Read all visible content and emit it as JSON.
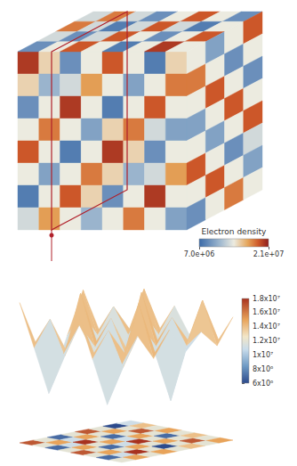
{
  "chart_data": [
    {
      "type": "volume",
      "colorbar": {
        "title": "Electron density",
        "range": [
          7000000.0,
          21000000.0
        ],
        "ticks": [
          {
            "value": 7000000,
            "label": "7.0e+06"
          },
          {
            "value": 21000000,
            "label": "2.1e+07"
          }
        ]
      },
      "cells": {
        "front": [
          [
            20000000.0,
            15000000.0,
            9000000.0,
            14000000.0,
            19000000.0,
            14000000.0,
            8000000.0,
            15000000.0
          ],
          [
            15000000.0,
            11000000.0,
            13000000.0,
            17000000.0,
            14000000.0,
            10000000.0,
            14000000.0,
            18000000.0
          ],
          [
            9000000.0,
            14000000.0,
            20000000.0,
            14000000.0,
            8000000.0,
            14000000.0,
            19000000.0,
            14000000.0
          ],
          [
            14000000.0,
            18000000.0,
            14000000.0,
            10000000.0,
            15000000.0,
            18000000.0,
            13000000.0,
            10000000.0
          ],
          [
            19000000.0,
            14000000.0,
            8000000.0,
            14000000.0,
            20000000.0,
            15000000.0,
            9000000.0,
            14000000.0
          ],
          [
            14000000.0,
            10000000.0,
            14000000.0,
            18000000.0,
            15000000.0,
            11000000.0,
            13000000.0,
            17000000.0
          ],
          [
            8000000.0,
            14000000.0,
            19000000.0,
            15000000.0,
            9000000.0,
            14000000.0,
            20000000.0,
            14000000.0
          ],
          [
            13000000.0,
            17000000.0,
            14000000.0,
            11000000.0,
            14000000.0,
            18000000.0,
            14000000.0,
            10000000.0
          ]
        ],
        "top": [
          [
            13000000.0,
            18000000.0,
            13000000.0,
            9000000.0,
            14000000.0,
            19000000.0,
            14000000.0,
            9000000.0
          ],
          [
            18000000.0,
            13000000.0,
            8000000.0,
            13000000.0,
            19000000.0,
            13000000.0,
            8000000.0,
            14000000.0
          ],
          [
            13000000.0,
            9000000.0,
            13000000.0,
            19000000.0,
            14000000.0,
            9000000.0,
            14000000.0,
            19000000.0
          ],
          [
            9000000.0,
            14000000.0,
            19000000.0,
            14000000.0,
            8000000.0,
            14000000.0,
            20000000.0,
            14000000.0
          ]
        ],
        "right": [
          [
            14000000.0,
            10000000.0,
            14000000.0,
            19000000.0
          ],
          [
            18000000.0,
            14000000.0,
            9000000.0,
            14000000.0
          ],
          [
            14000000.0,
            19000000.0,
            14000000.0,
            9000000.0
          ],
          [
            10000000.0,
            14000000.0,
            19000000.0,
            14000000.0
          ],
          [
            14000000.0,
            10000000.0,
            14000000.0,
            19000000.0
          ],
          [
            19000000.0,
            14000000.0,
            9000000.0,
            13000000.0
          ],
          [
            14000000.0,
            19000000.0,
            14000000.0,
            10000000.0
          ],
          [
            9000000.0,
            14000000.0,
            18000000.0,
            14000000.0
          ]
        ]
      }
    },
    {
      "type": "surface",
      "colorbar": {
        "range": [
          6000000.0,
          18000000.0
        ],
        "ticks": [
          {
            "value": 6000000,
            "label": "6x10⁶"
          },
          {
            "value": 8000000,
            "label": "8x10⁶"
          },
          {
            "value": 10000000,
            "label": "1x10⁷"
          },
          {
            "value": 12000000,
            "label": "1.2x10⁷"
          },
          {
            "value": 14000000,
            "label": "1.4x10⁷"
          },
          {
            "value": 16000000,
            "label": "1.6x10⁷"
          },
          {
            "value": 18000000,
            "label": "1.8x10⁷"
          }
        ]
      },
      "cells": [
        [
          17000000.0,
          12000000.0,
          7000000.0,
          12000000.0,
          17000000.0,
          12000000.0,
          7000000.0,
          12000000.0
        ],
        [
          12000000.0,
          15000000.0,
          11000000.0,
          15000000.0,
          12000000.0,
          15000000.0,
          11000000.0,
          15000000.0
        ],
        [
          7000000.0,
          11000000.0,
          18000000.0,
          12000000.0,
          7000000.0,
          12000000.0,
          18000000.0,
          12000000.0
        ],
        [
          12000000.0,
          15000000.0,
          12000000.0,
          15000000.0,
          11000000.0,
          15000000.0,
          12000000.0,
          15000000.0
        ],
        [
          17000000.0,
          12000000.0,
          7000000.0,
          11000000.0,
          18000000.0,
          12000000.0,
          6000000.0,
          12000000.0
        ],
        [
          12000000.0,
          15000000.0,
          12000000.0,
          15000000.0,
          12000000.0,
          15000000.0,
          12000000.0,
          14000000.0
        ],
        [
          6000000.0,
          12000000.0,
          17000000.0,
          12000000.0,
          7000000.0,
          12000000.0,
          17000000.0,
          12000000.0
        ],
        [
          11000000.0,
          14000000.0,
          12000000.0,
          15000000.0,
          12000000.0,
          14000000.0,
          12000000.0,
          15000000.0
        ]
      ]
    }
  ]
}
